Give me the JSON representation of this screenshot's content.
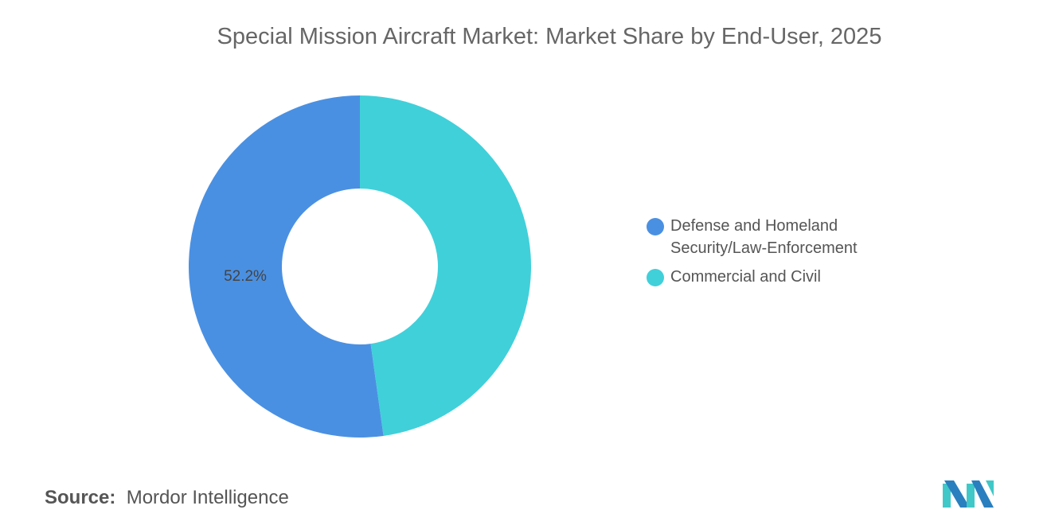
{
  "chart_data": {
    "type": "pie",
    "variant": "donut",
    "title": "Special Mission Aircraft Market: Market Share by End-User, 2025",
    "categories": [
      "Defense and Homeland Security/Law-Enforcement",
      "Commercial and Civil"
    ],
    "values": [
      52.2,
      47.8
    ],
    "unit": "%",
    "data_labels": [
      "52.2%",
      ""
    ],
    "colors": [
      "#4a90e2",
      "#40d0da"
    ],
    "legend_position": "right"
  },
  "legend": {
    "items": [
      {
        "label_line1": "Defense and Homeland",
        "label_line2": "Security/Law-Enforcement",
        "color": "#4a90e2"
      },
      {
        "label_line1": "Commercial and Civil",
        "label_line2": "",
        "color": "#40d0da"
      }
    ]
  },
  "source": {
    "label": "Source:",
    "value": "Mordor Intelligence"
  },
  "logo": {
    "text": "MI",
    "colors": [
      "#2a7fbf",
      "#40c8c8"
    ]
  }
}
